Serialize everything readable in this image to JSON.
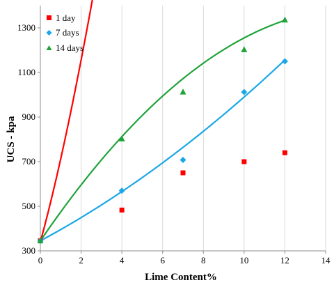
{
  "chart_data": {
    "type": "scatter",
    "title": "",
    "xlabel": "Lime Content%",
    "ylabel": "UCS - kpa",
    "xlim": [
      0,
      14
    ],
    "ylim": [
      300,
      1400
    ],
    "x_ticks": [
      0,
      2,
      4,
      6,
      8,
      10,
      12,
      14
    ],
    "y_ticks": [
      300,
      500,
      700,
      900,
      1100,
      1300
    ],
    "grid": "vertical",
    "legend_position": "top-left",
    "series": [
      {
        "name": "1 day",
        "marker": "square",
        "color": "#ff0000",
        "x": [
          0,
          4,
          7,
          10,
          12
        ],
        "y": [
          345,
          483,
          650,
          700,
          740
        ],
        "trend": [
          340,
          333.3,
          41.9,
          -2.31
        ]
      },
      {
        "name": "7 days",
        "marker": "diamond",
        "color": "#1aa7e6",
        "x": [
          0,
          4,
          7,
          10,
          12
        ],
        "y": [
          345,
          570,
          708,
          1012,
          1150
        ],
        "trend": [
          345,
          49,
          1.55
        ]
      },
      {
        "name": "14 days",
        "marker": "triangle",
        "color": "#1fa33a",
        "x": [
          0,
          4,
          7,
          10,
          12
        ],
        "y": [
          345,
          802,
          1012,
          1202,
          1335
        ],
        "trend": [
          345,
          134,
          -4.3
        ]
      }
    ]
  }
}
